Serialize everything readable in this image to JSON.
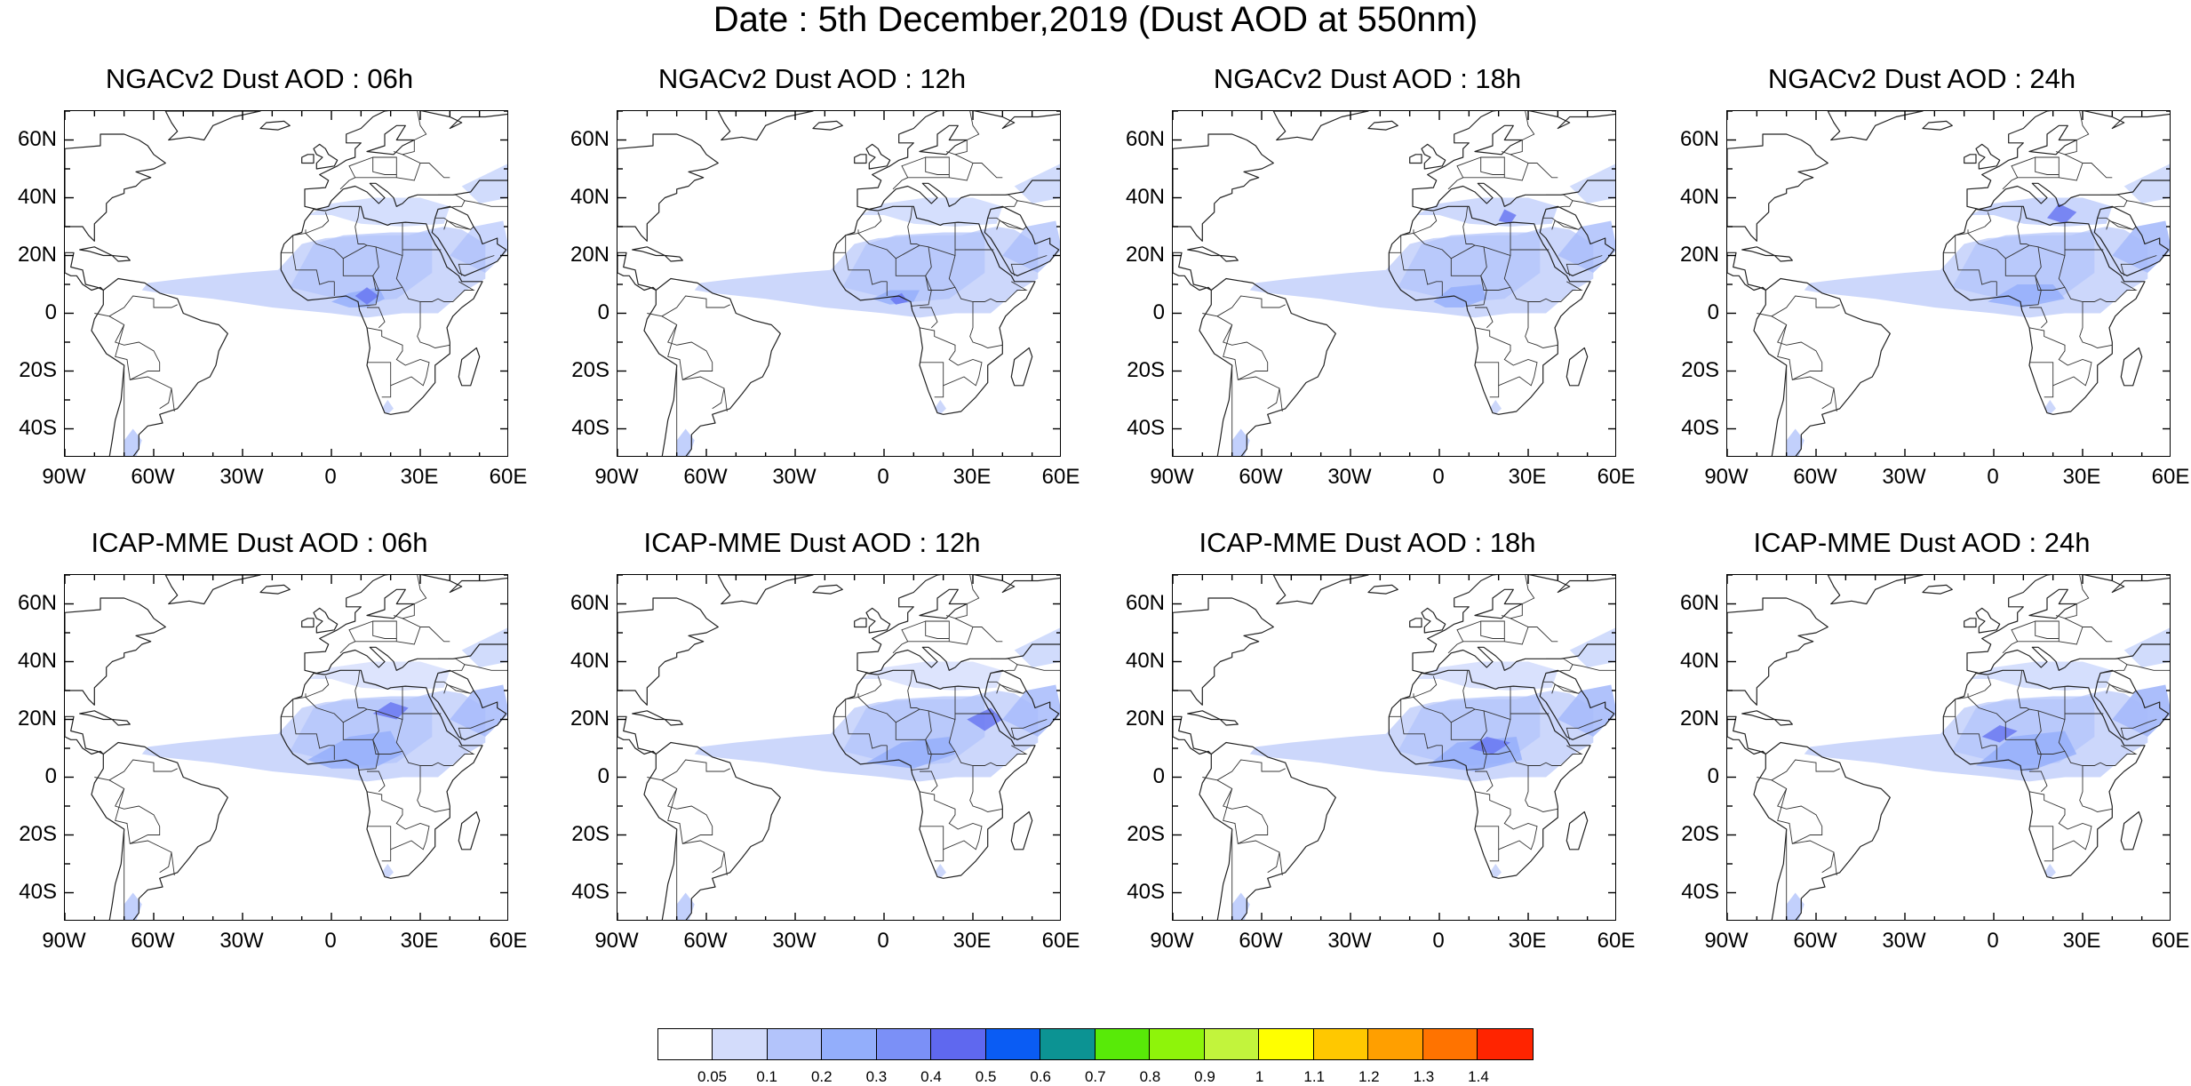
{
  "title": "Date : 5th December,2019 (Dust AOD at 550nm)",
  "panels": [
    {
      "title": "NGACv2 Dust AOD : 06h"
    },
    {
      "title": "NGACv2 Dust AOD : 12h"
    },
    {
      "title": "NGACv2 Dust AOD : 18h"
    },
    {
      "title": "NGACv2 Dust AOD : 24h"
    },
    {
      "title": "ICAP-MME Dust AOD : 06h"
    },
    {
      "title": "ICAP-MME Dust AOD : 12h"
    },
    {
      "title": "ICAP-MME Dust AOD : 18h"
    },
    {
      "title": "ICAP-MME Dust AOD : 24h"
    }
  ],
  "axes": {
    "lat_labels": [
      "60N",
      "40N",
      "20N",
      "0",
      "20S",
      "40S"
    ],
    "lon_labels": [
      "90W",
      "60W",
      "30W",
      "0",
      "30E",
      "60E"
    ],
    "lat_range": [
      -50,
      70
    ],
    "lon_range": [
      -90,
      60
    ]
  },
  "colorbar": {
    "colors": [
      "#ffffff",
      "#d3dcfb",
      "#b3c4fb",
      "#93aefb",
      "#7b90f7",
      "#5f68ef",
      "#0a5cf4",
      "#0c9393",
      "#58ea08",
      "#8ef40a",
      "#c2f43c",
      "#ffff00",
      "#ffc800",
      "#ff9f00",
      "#ff7300",
      "#ff2400"
    ],
    "labels": [
      "0.05",
      "0.1",
      "0.2",
      "0.3",
      "0.4",
      "0.5",
      "0.6",
      "0.7",
      "0.8",
      "0.9",
      "1",
      "1.1",
      "1.2",
      "1.3",
      "1.4"
    ]
  }
}
